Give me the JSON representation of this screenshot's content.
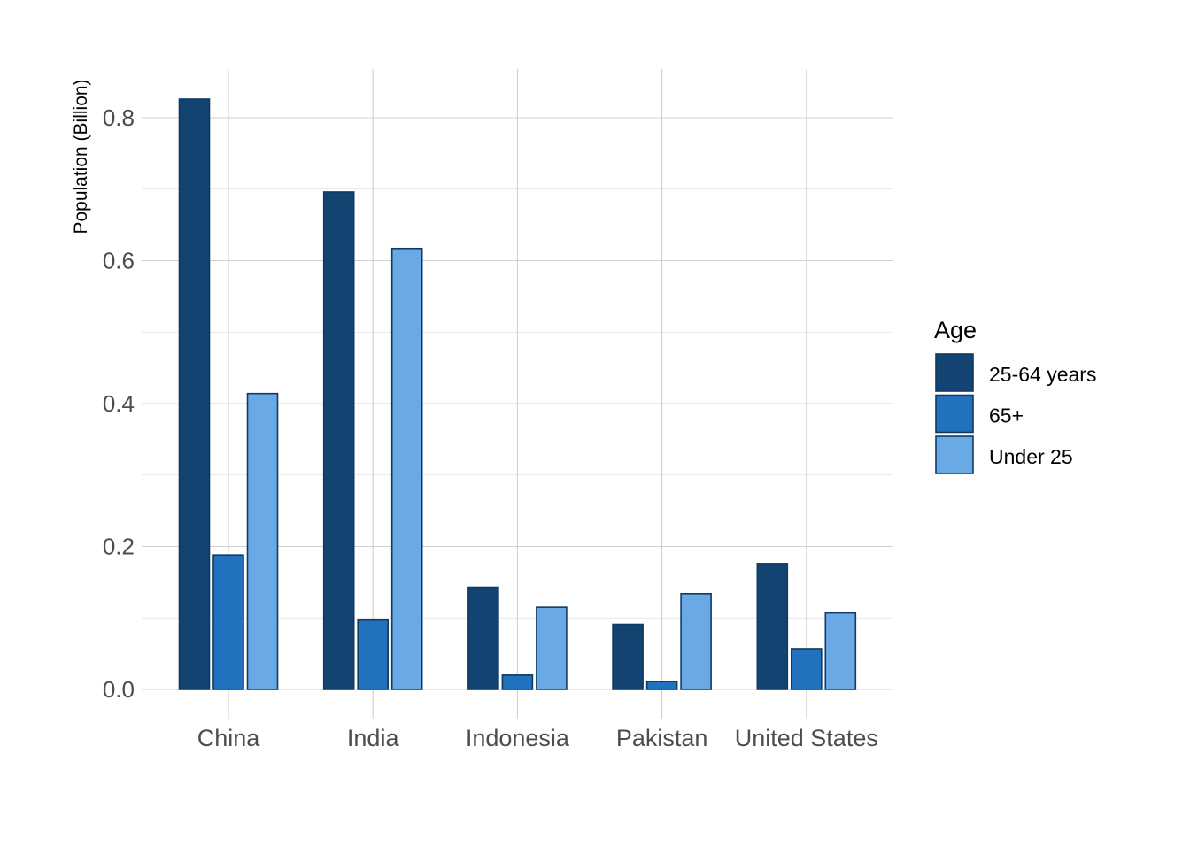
{
  "chart_data": {
    "type": "bar",
    "title": "",
    "xlabel": "",
    "ylabel": "Population (Billion)",
    "categories": [
      "China",
      "India",
      "Indonesia",
      "Pakistan",
      "United States"
    ],
    "series": [
      {
        "name": "25-64 years",
        "color": "#134370",
        "values": [
          0.826,
          0.696,
          0.143,
          0.091,
          0.176
        ]
      },
      {
        "name": "65+",
        "color": "#2171bd",
        "values": [
          0.188,
          0.097,
          0.02,
          0.011,
          0.057
        ]
      },
      {
        "name": "Under 25",
        "color": "#69a9e6",
        "values": [
          0.414,
          0.617,
          0.115,
          0.134,
          0.107
        ]
      }
    ],
    "y_ticks": [
      0.0,
      0.2,
      0.4,
      0.6,
      0.8
    ],
    "y_tick_labels": [
      "0.0",
      "0.2",
      "0.4",
      "0.6",
      "0.8"
    ],
    "ylim": [
      0.0,
      0.87
    ],
    "grid": true,
    "legend": {
      "title": "Age",
      "position": "right"
    },
    "bar_outline_color": "#0f3a63"
  }
}
